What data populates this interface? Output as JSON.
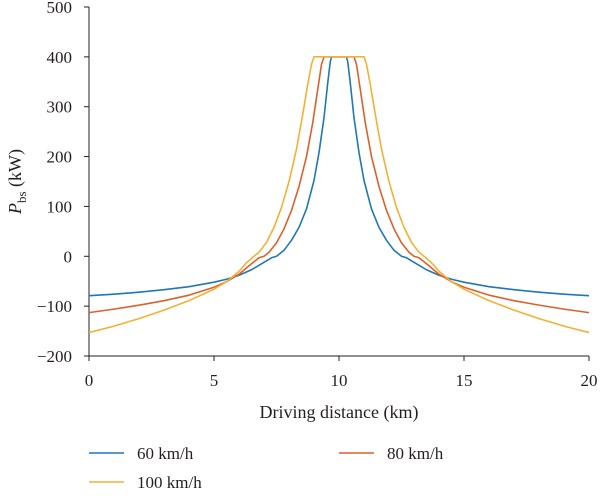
{
  "chart_data": {
    "type": "line",
    "xlabel": "Driving distance (km)",
    "ylabel": "Pbs (kW)",
    "ylabel_parts": {
      "symbol": "P",
      "subscript": "bs",
      "unit": " (kW)"
    },
    "xlim": [
      0,
      20
    ],
    "ylim": [
      -200,
      500
    ],
    "xticks": [
      0,
      5,
      10,
      15,
      20
    ],
    "yticks": [
      -200,
      -100,
      0,
      100,
      200,
      300,
      400,
      500
    ],
    "xtick_labels": [
      "0",
      "5",
      "10",
      "15",
      "20"
    ],
    "ytick_labels": [
      "−200",
      "−100",
      "0",
      "100",
      "200",
      "300",
      "400",
      "500"
    ],
    "grid": false,
    "legend_position": "bottom",
    "series": [
      {
        "name": "60 km/h",
        "color": "#1f77b4",
        "x": [
          0,
          1,
          2,
          3,
          4,
          5,
          5.5,
          6,
          6.5,
          7,
          7.3,
          7.5,
          7.8,
          8.1,
          8.4,
          8.7,
          9.0,
          9.2,
          9.4,
          9.55,
          9.65,
          9.7,
          10.3,
          10.35,
          10.45,
          10.6,
          10.8,
          11.0,
          11.3,
          11.6,
          11.9,
          12.2,
          12.5,
          12.7,
          13.0,
          13.5,
          14,
          14.5,
          15,
          16,
          17,
          18,
          19,
          20
        ],
        "y": [
          -79,
          -76,
          -72,
          -67,
          -61,
          -52,
          -46,
          -38,
          -27,
          -12,
          -3,
          0,
          12,
          32,
          58,
          95,
          152,
          208,
          278,
          348,
          390,
          400,
          400,
          390,
          348,
          278,
          208,
          152,
          95,
          58,
          32,
          12,
          0,
          -3,
          -12,
          -27,
          -38,
          -46,
          -52,
          -61,
          -67,
          -72,
          -76,
          -79
        ]
      },
      {
        "name": "80 km/h",
        "color": "#d9622b",
        "x": [
          0,
          1,
          2,
          3,
          4,
          5,
          5.5,
          6,
          6.5,
          6.8,
          7.0,
          7.2,
          7.5,
          7.8,
          8.1,
          8.4,
          8.7,
          8.95,
          9.15,
          9.3,
          9.4,
          10.6,
          10.7,
          10.85,
          11.05,
          11.3,
          11.6,
          11.9,
          12.2,
          12.5,
          12.8,
          13.0,
          13.2,
          13.5,
          14,
          14.5,
          15,
          16,
          17,
          18,
          19,
          20
        ],
        "y": [
          -113,
          -106,
          -98,
          -89,
          -78,
          -62,
          -51,
          -36,
          -15,
          -3,
          0,
          8,
          27,
          55,
          92,
          140,
          200,
          268,
          335,
          385,
          400,
          400,
          385,
          335,
          268,
          200,
          140,
          92,
          55,
          27,
          8,
          0,
          -3,
          -15,
          -36,
          -51,
          -62,
          -78,
          -89,
          -98,
          -106,
          -113
        ]
      },
      {
        "name": "100 km/h",
        "color": "#f2b134",
        "x": [
          0,
          1,
          2,
          3,
          4,
          5,
          5.5,
          6,
          6.3,
          6.6,
          6.8,
          7.1,
          7.4,
          7.7,
          8.0,
          8.3,
          8.55,
          8.75,
          8.9,
          9.0,
          11.0,
          11.1,
          11.25,
          11.45,
          11.7,
          12.0,
          12.3,
          12.6,
          12.9,
          13.2,
          13.4,
          13.7,
          14,
          14.5,
          15,
          16,
          17,
          18,
          19,
          20
        ],
        "y": [
          -153,
          -140,
          -125,
          -108,
          -89,
          -66,
          -51,
          -30,
          -13,
          0,
          8,
          28,
          58,
          98,
          150,
          215,
          285,
          345,
          385,
          400,
          400,
          385,
          345,
          285,
          215,
          150,
          98,
          58,
          28,
          8,
          0,
          -13,
          -30,
          -51,
          -66,
          -89,
          -108,
          -125,
          -140,
          -153
        ]
      }
    ]
  }
}
